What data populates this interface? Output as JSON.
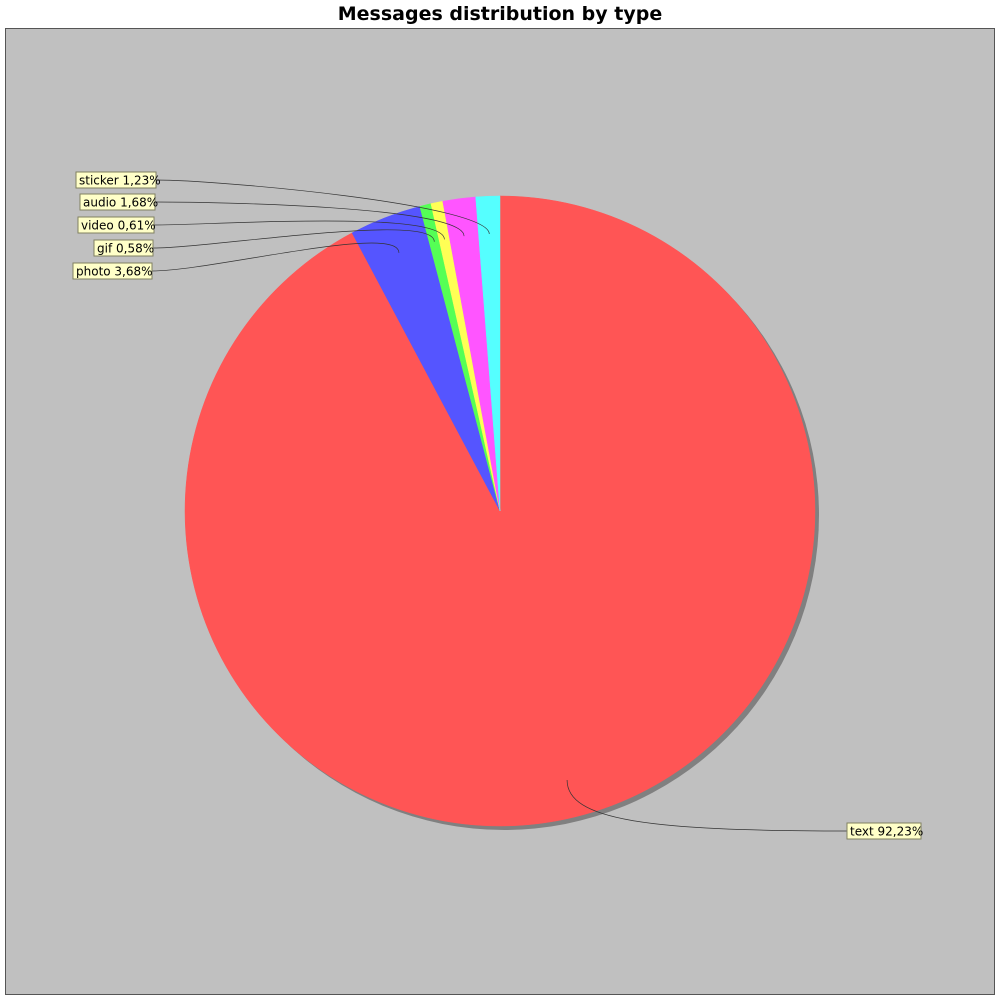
{
  "chart_data": {
    "type": "pie",
    "title": "Messages distribution by type",
    "legend": "none",
    "slices": [
      {
        "name": "text",
        "value": 92.23,
        "label": "text 92,23%",
        "color": "#ff5555"
      },
      {
        "name": "photo",
        "value": 3.68,
        "label": "photo 3,68%",
        "color": "#5555ff"
      },
      {
        "name": "gif",
        "value": 0.58,
        "label": "gif 0,58%",
        "color": "#55ff55"
      },
      {
        "name": "video",
        "value": 0.61,
        "label": "video 0,61%",
        "color": "#ffff55"
      },
      {
        "name": "audio",
        "value": 1.68,
        "label": "audio 1,68%",
        "color": "#ff55ff"
      },
      {
        "name": "sticker",
        "value": 1.23,
        "label": "sticker 1,23%",
        "color": "#55ffff"
      }
    ]
  }
}
